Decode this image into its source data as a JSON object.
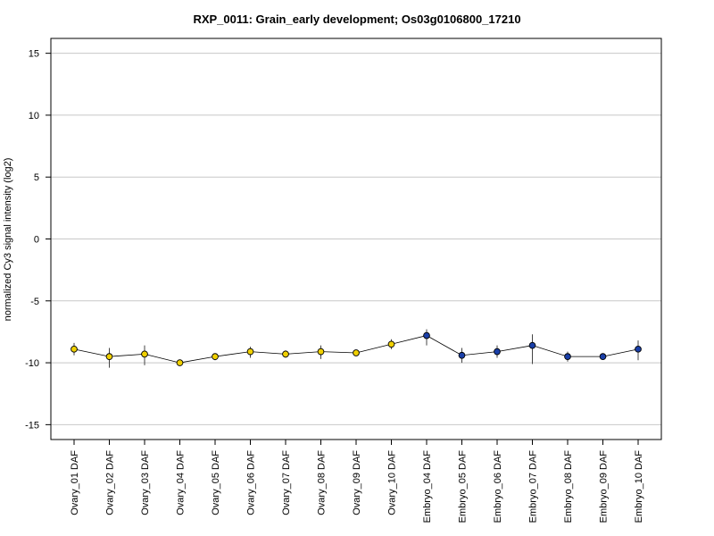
{
  "chart_data": {
    "type": "line",
    "title": "RXP_0011: Grain_early development; Os03g0106800_17210",
    "ylabel": "normalized Cy3 signal intensity (log2)",
    "xlabel": "",
    "ylim": [
      -16.2,
      16.2
    ],
    "yticks": [
      -15,
      -10,
      -5,
      0,
      5,
      10,
      15
    ],
    "grid": true,
    "categories": [
      "Ovary_01 DAF",
      "Ovary_02 DAF",
      "Ovary_03 DAF",
      "Ovary_04 DAF",
      "Ovary_05 DAF",
      "Ovary_06 DAF",
      "Ovary_07 DAF",
      "Ovary_08 DAF",
      "Ovary_09 DAF",
      "Ovary_10 DAF",
      "Embryo_04 DAF",
      "Embryo_05 DAF",
      "Embryo_06 DAF",
      "Embryo_07 DAF",
      "Embryo_08 DAF",
      "Embryo_09 DAF",
      "Embryo_10 DAF"
    ],
    "values": [
      -8.9,
      -9.5,
      -9.3,
      -10.0,
      -9.5,
      -9.1,
      -9.3,
      -9.1,
      -9.2,
      -8.5,
      -7.8,
      -9.4,
      -9.1,
      -8.6,
      -9.5,
      -9.5,
      -8.9
    ],
    "error_low": [
      -9.4,
      -10.4,
      -10.2,
      -10.2,
      -9.8,
      -9.6,
      -9.6,
      -9.7,
      -9.4,
      -8.9,
      -8.6,
      -10.0,
      -9.6,
      -10.1,
      -9.9,
      -9.6,
      -9.8
    ],
    "error_high": [
      -8.4,
      -8.8,
      -8.6,
      -9.9,
      -9.3,
      -8.7,
      -9.0,
      -8.6,
      -9.0,
      -8.1,
      -7.3,
      -8.8,
      -8.6,
      -7.7,
      -9.1,
      -9.4,
      -8.2
    ],
    "colors": {
      "ovary": "#f0d000",
      "embryo": "#1a3fa8",
      "line": "#000000",
      "grid": "#c8c8c8"
    },
    "point_colors": [
      "ovary",
      "ovary",
      "ovary",
      "ovary",
      "ovary",
      "ovary",
      "ovary",
      "ovary",
      "ovary",
      "ovary",
      "embryo",
      "embryo",
      "embryo",
      "embryo",
      "embryo",
      "embryo",
      "embryo"
    ]
  }
}
